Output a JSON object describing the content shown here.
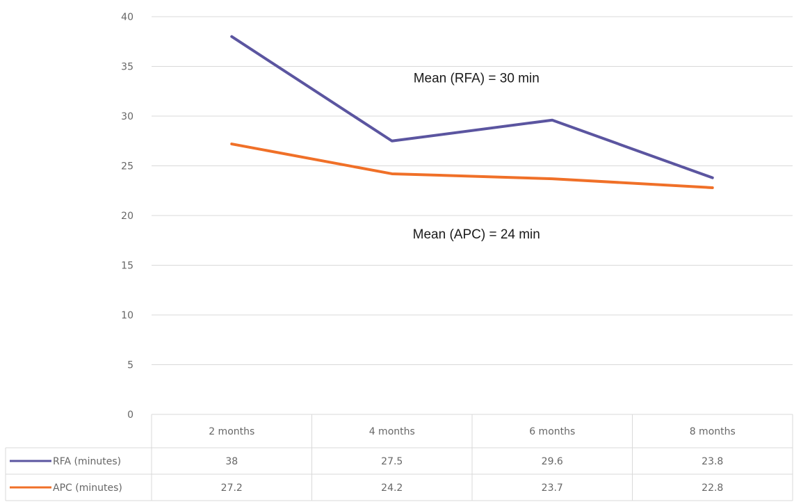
{
  "chart_data": {
    "type": "line",
    "categories": [
      "2 months",
      "4 months",
      "6 months",
      "8 months"
    ],
    "series": [
      {
        "name": "RFA (minutes)",
        "values": [
          38,
          27.5,
          29.6,
          23.8
        ],
        "color": "#5b55a0"
      },
      {
        "name": "APC (minutes)",
        "values": [
          27.2,
          24.2,
          23.7,
          22.8
        ],
        "color": "#f07028"
      }
    ],
    "ylim": [
      0,
      40
    ],
    "yticks": [
      0,
      5,
      10,
      15,
      20,
      25,
      30,
      35,
      40
    ],
    "grid": true,
    "legend": "data-table-bottom",
    "annotations": [
      {
        "text": "Mean (RFA) = 30 min",
        "x": "6 months",
        "y": 33.8
      },
      {
        "text": "Mean (APC) = 24 min",
        "x": "6 months",
        "y": 18.1
      }
    ],
    "gridline_color": "#d9d9d9"
  }
}
